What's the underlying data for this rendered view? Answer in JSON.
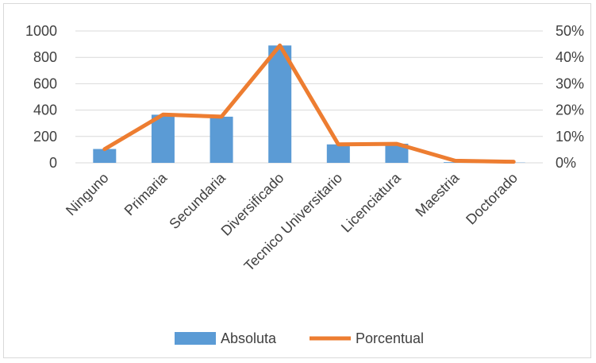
{
  "chart_data": {
    "type": "bar+line",
    "categories": [
      "Ninguno",
      "Primaria",
      "Secundaria",
      "Diversificado",
      "Tecnico Universitario",
      "Licenciatura",
      "Maestria",
      "Doctorado"
    ],
    "series": [
      {
        "name": "Absoluta",
        "type": "bar",
        "axis": "left",
        "values": [
          105,
          365,
          350,
          890,
          140,
          145,
          5,
          2
        ]
      },
      {
        "name": "Porcentual",
        "type": "line",
        "axis": "right",
        "values": [
          0.052,
          0.183,
          0.175,
          0.445,
          0.07,
          0.072,
          0.008,
          0.004
        ]
      }
    ],
    "y_left": {
      "min": 0,
      "max": 1000,
      "ticks": [
        "0",
        "200",
        "400",
        "600",
        "800",
        "1000"
      ]
    },
    "y_right": {
      "min": 0,
      "max": 0.5,
      "ticks": [
        "0%",
        "10%",
        "20%",
        "30%",
        "40%",
        "50%"
      ]
    },
    "grid": true,
    "legend": "bottom",
    "colors": {
      "bar": "#5b9bd5",
      "line": "#ed7d31",
      "grid": "#d9d9d9",
      "text": "#404040"
    }
  }
}
